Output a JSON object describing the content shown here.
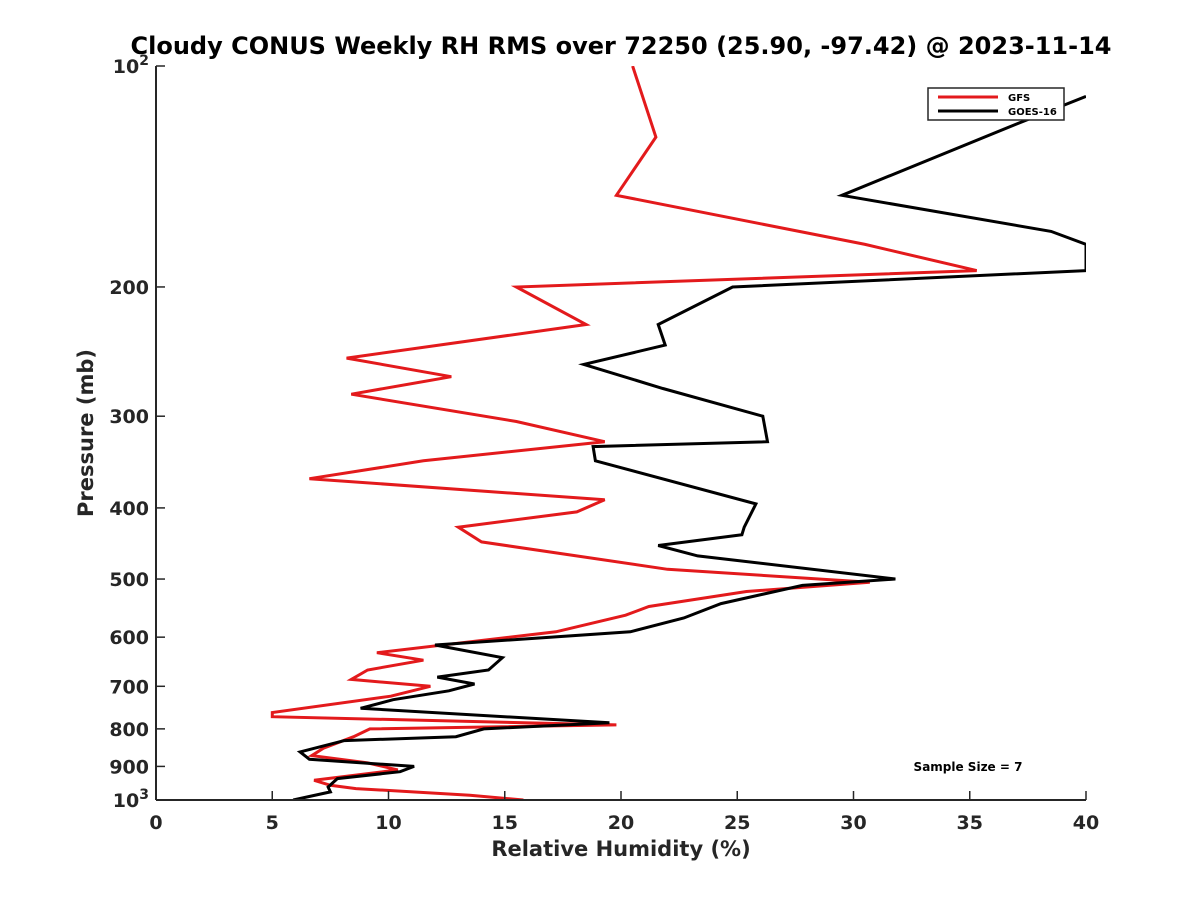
{
  "chart_data": {
    "type": "line",
    "title": "Cloudy CONUS Weekly RH RMS over 72250 (25.90, -97.42) @ 2023-11-14",
    "xlabel": "Relative Humidity (%)",
    "ylabel": "Pressure (mb)",
    "xlim": [
      0,
      40
    ],
    "ylim": [
      100,
      1000
    ],
    "y_scale": "log",
    "y_reversed": true,
    "x_ticks": [
      0,
      5,
      10,
      15,
      20,
      25,
      30,
      35,
      40
    ],
    "x_tick_labels": [
      "0",
      "5",
      "10",
      "15",
      "20",
      "25",
      "30",
      "35",
      "40"
    ],
    "y_ticks": [
      100,
      200,
      300,
      400,
      500,
      600,
      700,
      800,
      900,
      1000
    ],
    "y_tick_labels": [
      {
        "text": "10",
        "sup": "2"
      },
      {
        "text": "200",
        "sup": ""
      },
      {
        "text": "300",
        "sup": ""
      },
      {
        "text": "400",
        "sup": ""
      },
      {
        "text": "500",
        "sup": ""
      },
      {
        "text": "600",
        "sup": ""
      },
      {
        "text": "700",
        "sup": ""
      },
      {
        "text": "800",
        "sup": ""
      },
      {
        "text": "900",
        "sup": ""
      },
      {
        "text": "10",
        "sup": "3"
      }
    ],
    "grid": false,
    "legend_position": "top-right",
    "annotation": "Sample Size = 7",
    "series": [
      {
        "name": "GFS",
        "color": "#e31a1c",
        "points": [
          [
            20.5,
            100
          ],
          [
            21.5,
            125
          ],
          [
            19.8,
            150
          ],
          [
            30.5,
            175
          ],
          [
            35.3,
            190
          ],
          [
            15.5,
            200
          ],
          [
            18.5,
            225
          ],
          [
            8.2,
            250
          ],
          [
            12.7,
            265
          ],
          [
            8.4,
            280
          ],
          [
            15.5,
            305
          ],
          [
            19.3,
            325
          ],
          [
            11.5,
            345
          ],
          [
            6.6,
            365
          ],
          [
            19.3,
            390
          ],
          [
            18.1,
            405
          ],
          [
            13.0,
            425
          ],
          [
            14.0,
            445
          ],
          [
            22.0,
            485
          ],
          [
            30.7,
            505
          ],
          [
            25.4,
            520
          ],
          [
            21.2,
            545
          ],
          [
            20.2,
            560
          ],
          [
            17.2,
            590
          ],
          [
            9.5,
            630
          ],
          [
            11.5,
            645
          ],
          [
            9.1,
            665
          ],
          [
            8.4,
            685
          ],
          [
            11.8,
            700
          ],
          [
            10.1,
            722
          ],
          [
            5.0,
            760
          ],
          [
            5.0,
            770
          ],
          [
            19.8,
            790
          ],
          [
            9.2,
            800
          ],
          [
            8.5,
            820
          ],
          [
            7.2,
            850
          ],
          [
            6.7,
            870
          ],
          [
            9.1,
            890
          ],
          [
            10.4,
            910
          ],
          [
            6.8,
            940
          ],
          [
            7.5,
            955
          ],
          [
            8.6,
            965
          ],
          [
            13.5,
            985
          ],
          [
            15.8,
            1000
          ]
        ]
      },
      {
        "name": "GOES-16",
        "color": "#000000",
        "points": [
          [
            40.0,
            110
          ],
          [
            37.0,
            120
          ],
          [
            29.5,
            150
          ],
          [
            38.5,
            168
          ],
          [
            40.0,
            175
          ],
          [
            40.0,
            190
          ],
          [
            24.8,
            200
          ],
          [
            21.6,
            225
          ],
          [
            21.9,
            240
          ],
          [
            18.4,
            255
          ],
          [
            21.8,
            275
          ],
          [
            26.1,
            300
          ],
          [
            26.3,
            325
          ],
          [
            18.8,
            330
          ],
          [
            18.9,
            345
          ],
          [
            25.8,
            395
          ],
          [
            25.3,
            425
          ],
          [
            25.2,
            435
          ],
          [
            21.6,
            450
          ],
          [
            23.3,
            465
          ],
          [
            31.8,
            500
          ],
          [
            27.8,
            510
          ],
          [
            24.3,
            540
          ],
          [
            22.7,
            565
          ],
          [
            20.4,
            590
          ],
          [
            12.0,
            615
          ],
          [
            14.9,
            640
          ],
          [
            14.3,
            665
          ],
          [
            12.1,
            680
          ],
          [
            13.7,
            695
          ],
          [
            12.6,
            710
          ],
          [
            10.2,
            730
          ],
          [
            8.8,
            750
          ],
          [
            19.5,
            785
          ],
          [
            14.1,
            800
          ],
          [
            12.9,
            820
          ],
          [
            8.1,
            830
          ],
          [
            6.2,
            860
          ],
          [
            6.6,
            880
          ],
          [
            11.1,
            900
          ],
          [
            10.5,
            915
          ],
          [
            7.8,
            935
          ],
          [
            7.4,
            960
          ],
          [
            7.5,
            975
          ],
          [
            5.9,
            1000
          ]
        ]
      }
    ]
  }
}
